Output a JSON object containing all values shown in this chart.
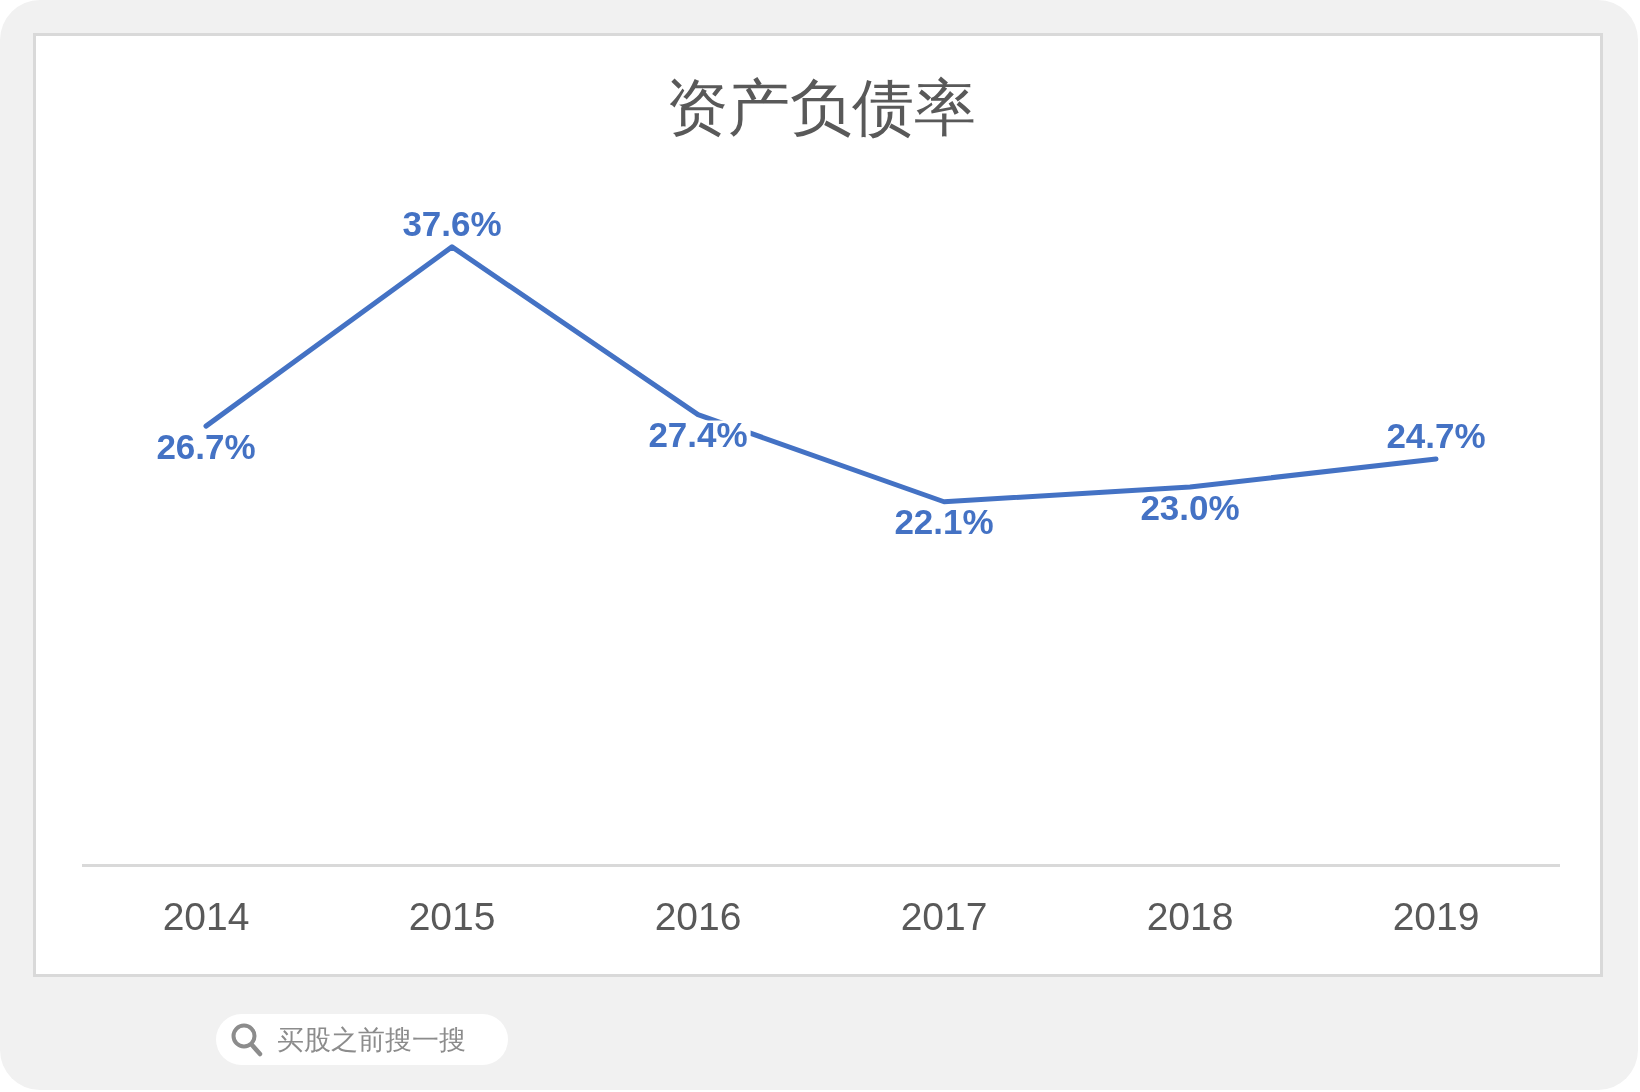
{
  "chart_data": {
    "type": "line",
    "title": "资产负债率",
    "categories": [
      "2014",
      "2015",
      "2016",
      "2017",
      "2018",
      "2019"
    ],
    "values": [
      26.7,
      37.6,
      27.4,
      22.1,
      23.0,
      24.7
    ],
    "value_labels": [
      "26.7%",
      "37.6%",
      "27.4%",
      "22.1%",
      "23.0%",
      "24.7%"
    ],
    "color": "#4472c4",
    "tick_labels": "x",
    "line_style": "solid",
    "annotations": [
      "买股之前搜一搜"
    ]
  }
}
